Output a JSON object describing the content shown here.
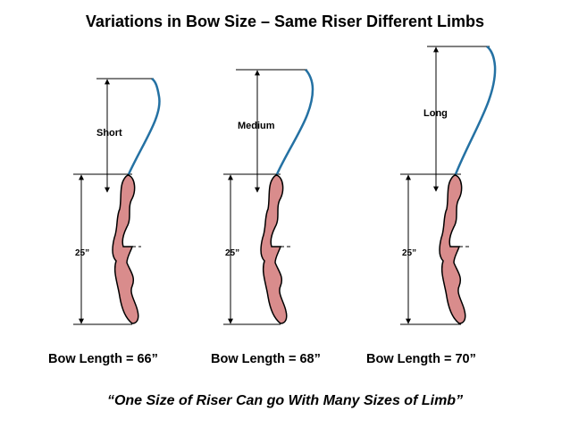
{
  "title": "Variations in Bow Size – Same Riser Different Limbs",
  "bows": [
    {
      "limb_label": "Short",
      "riser_label": "25”",
      "length_label": "Bow Length = 66”"
    },
    {
      "limb_label": "Medium",
      "riser_label": "25”",
      "length_label": "Bow Length = 68”"
    },
    {
      "limb_label": "Long",
      "riser_label": "25”",
      "length_label": "Bow Length = 70”"
    }
  ],
  "quote": "“One Size of  Riser  Can go With Many Sizes of Limb”",
  "colors": {
    "riser_fill": "#d98c8c",
    "limb_stroke": "#2471a3",
    "line": "#000000"
  }
}
